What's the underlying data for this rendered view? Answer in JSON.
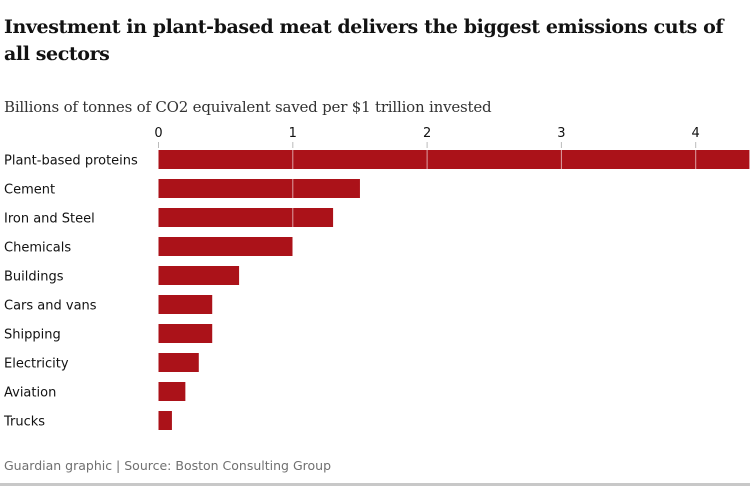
{
  "chart_data": {
    "type": "bar",
    "orientation": "horizontal",
    "title": "Investment in plant-based meat delivers the biggest emissions cuts of all sectors",
    "subtitle": "Billions of tonnes of CO2 equivalent saved per $1 trillion invested",
    "categories": [
      "Plant-based proteins",
      "Cement",
      "Iron and Steel",
      "Chemicals",
      "Buildings",
      "Cars and vans",
      "Shipping",
      "Electricity",
      "Aviation",
      "Trucks"
    ],
    "values": [
      4.4,
      1.5,
      1.3,
      1.0,
      0.6,
      0.4,
      0.4,
      0.3,
      0.2,
      0.1
    ],
    "xticks": [
      "0",
      "1",
      "2",
      "3",
      "4"
    ],
    "xlim": [
      0,
      4.4
    ],
    "grid": false,
    "bar_color": "#ab1219",
    "footer": "Guardian graphic | Source: Boston Consulting Group"
  }
}
